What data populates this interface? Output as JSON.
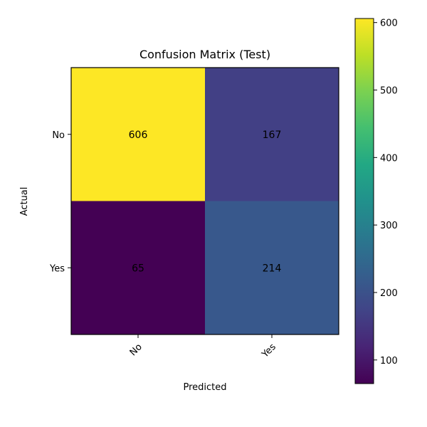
{
  "chart_data": {
    "type": "heatmap",
    "title": "Confusion Matrix (Test)",
    "xlabel": "Predicted",
    "ylabel": "Actual",
    "x_categories": [
      "No",
      "Yes"
    ],
    "y_categories": [
      "No",
      "Yes"
    ],
    "values": [
      [
        606,
        167
      ],
      [
        65,
        214
      ]
    ],
    "colormap": "viridis",
    "colorbar": {
      "min": 65,
      "max": 606,
      "ticks": [
        100,
        200,
        300,
        400,
        500,
        600
      ]
    },
    "grid": false
  }
}
